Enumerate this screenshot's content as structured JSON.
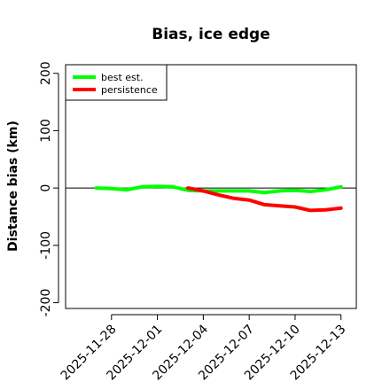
{
  "chart_data": {
    "type": "line",
    "title": "Bias, ice edge",
    "xlabel": "",
    "ylabel": "Distance bias (km)",
    "ylim": [
      -210,
      215
    ],
    "xlim": [
      "2025-11-25",
      "2025-12-14"
    ],
    "y_ticks": [
      "-200",
      "-100",
      "0",
      "100",
      "200"
    ],
    "x_ticks": [
      "2025-11-28",
      "2025-12-01",
      "2025-12-04",
      "2025-12-07",
      "2025-12-10",
      "2025-12-13"
    ],
    "reference_line": 0,
    "legend_position": "top-left",
    "series": [
      {
        "name": "best est.",
        "color": "#00ff00",
        "x": [
          "2025-11-27",
          "2025-11-28",
          "2025-11-29",
          "2025-11-30",
          "2025-12-01",
          "2025-12-02",
          "2025-12-03",
          "2025-12-04",
          "2025-12-05",
          "2025-12-06",
          "2025-12-07",
          "2025-12-08",
          "2025-12-09",
          "2025-12-10",
          "2025-12-11",
          "2025-12-12",
          "2025-12-13"
        ],
        "values": [
          0,
          -1,
          -3,
          2,
          3,
          2,
          -4,
          -5,
          -5,
          -5,
          -5,
          -8,
          -5,
          -4,
          -6,
          -3,
          2
        ]
      },
      {
        "name": "persistence",
        "color": "#ff0000",
        "x": [
          "2025-12-03",
          "2025-12-04",
          "2025-12-05",
          "2025-12-06",
          "2025-12-07",
          "2025-12-08",
          "2025-12-09",
          "2025-12-10",
          "2025-12-11",
          "2025-12-12",
          "2025-12-13"
        ],
        "values": [
          0,
          -5,
          -12,
          -18,
          -21,
          -29,
          -31,
          -33,
          -39,
          -38,
          -35
        ]
      }
    ]
  }
}
